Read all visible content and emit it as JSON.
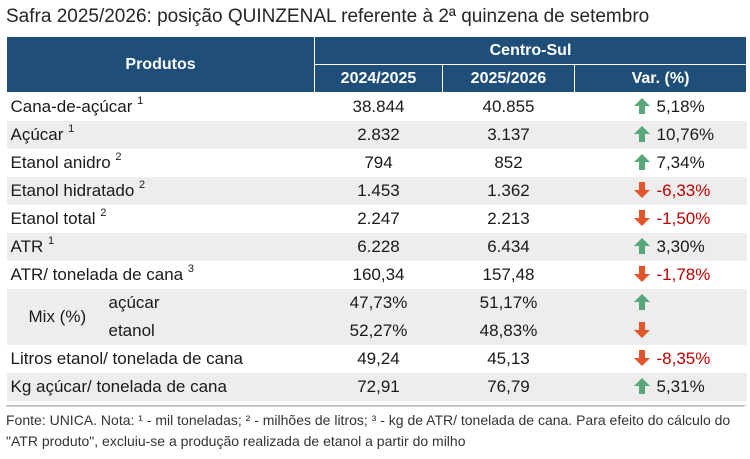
{
  "title": "Safra 2025/2026: posição QUINZENAL referente à 2ª quinzena de setembro",
  "header": {
    "products": "Produtos",
    "region": "Centro-Sul",
    "col1": "2024/2025",
    "col2": "2025/2026",
    "col3": "Var. (%)"
  },
  "rows": [
    {
      "name": "Cana-de-açúcar",
      "sup": "1",
      "v1": "38.844",
      "v2": "40.855",
      "var": "5,18%",
      "dir": "up"
    },
    {
      "name": "Açúcar",
      "sup": "1",
      "v1": "2.832",
      "v2": "3.137",
      "var": "10,76%",
      "dir": "up"
    },
    {
      "name": "Etanol anidro",
      "sup": "2",
      "v1": "794",
      "v2": "852",
      "var": "7,34%",
      "dir": "up"
    },
    {
      "name": "Etanol hidratado",
      "sup": "2",
      "v1": "1.453",
      "v2": "1.362",
      "var": "-6,33%",
      "dir": "down"
    },
    {
      "name": "Etanol total",
      "sup": "2",
      "v1": "2.247",
      "v2": "2.213",
      "var": "-1,50%",
      "dir": "down"
    },
    {
      "name": "ATR",
      "sup": "1",
      "v1": "6.228",
      "v2": "6.434",
      "var": "3,30%",
      "dir": "up"
    },
    {
      "name": "ATR/ tonelada de cana",
      "sup": "3",
      "v1": "160,34",
      "v2": "157,48",
      "var": "-1,78%",
      "dir": "down"
    }
  ],
  "mix": {
    "label": "Mix (%)",
    "sugar": {
      "name": "açúcar",
      "v1": "47,73%",
      "v2": "51,17%",
      "dir": "up"
    },
    "ethanol": {
      "name": "etanol",
      "v1": "52,27%",
      "v2": "48,83%",
      "dir": "down"
    }
  },
  "rows2": [
    {
      "name": "Litros etanol/ tonelada de cana",
      "v1": "49,24",
      "v2": "45,13",
      "var": "-8,35%",
      "dir": "down"
    },
    {
      "name": "Kg açúcar/ tonelada de cana",
      "v1": "72,91",
      "v2": "76,79",
      "var": "5,31%",
      "dir": "up"
    }
  ],
  "footnote": "Fonte: UNICA. Nota: ¹ - mil toneladas; ² - milhões de litros; ³ - kg de ATR/ tonelada de cana. Para efeito do cálculo do \"ATR produto\", excluiu-se a produção realizada de etanol a partir do milho",
  "colors": {
    "header_bg": "#1f4e79",
    "up": "#5aa77a",
    "down": "#e2552c",
    "negative_text": "#c00000",
    "shade": "#ededed"
  }
}
